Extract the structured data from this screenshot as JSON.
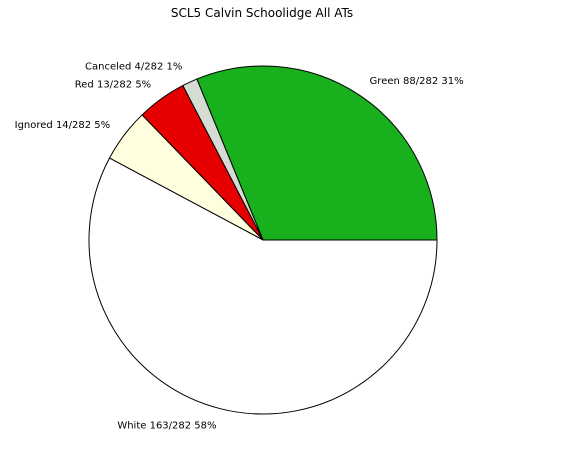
{
  "chart_data": {
    "type": "pie",
    "title": "SCL5 Calvin Schoolidge All ATs",
    "slices": [
      {
        "name": "Green",
        "value": 88,
        "label": "Green  88/282 31%",
        "color": "#18b01c"
      },
      {
        "name": "Canceled",
        "value": 4,
        "label": "Canceled  4/282 1%",
        "color": "#d4dcd4"
      },
      {
        "name": "Red",
        "value": 13,
        "label": "Red  13/282 5%",
        "color": "#e60000"
      },
      {
        "name": "Ignored",
        "value": 14,
        "label": "Ignored  14/282 5%",
        "color": "#ffffe0"
      },
      {
        "name": "White",
        "value": 163,
        "label": "White  163/282 58%",
        "color": "#ffffff"
      }
    ],
    "total": 282,
    "start_angle_deg": 0,
    "direction": "counterclockwise"
  }
}
